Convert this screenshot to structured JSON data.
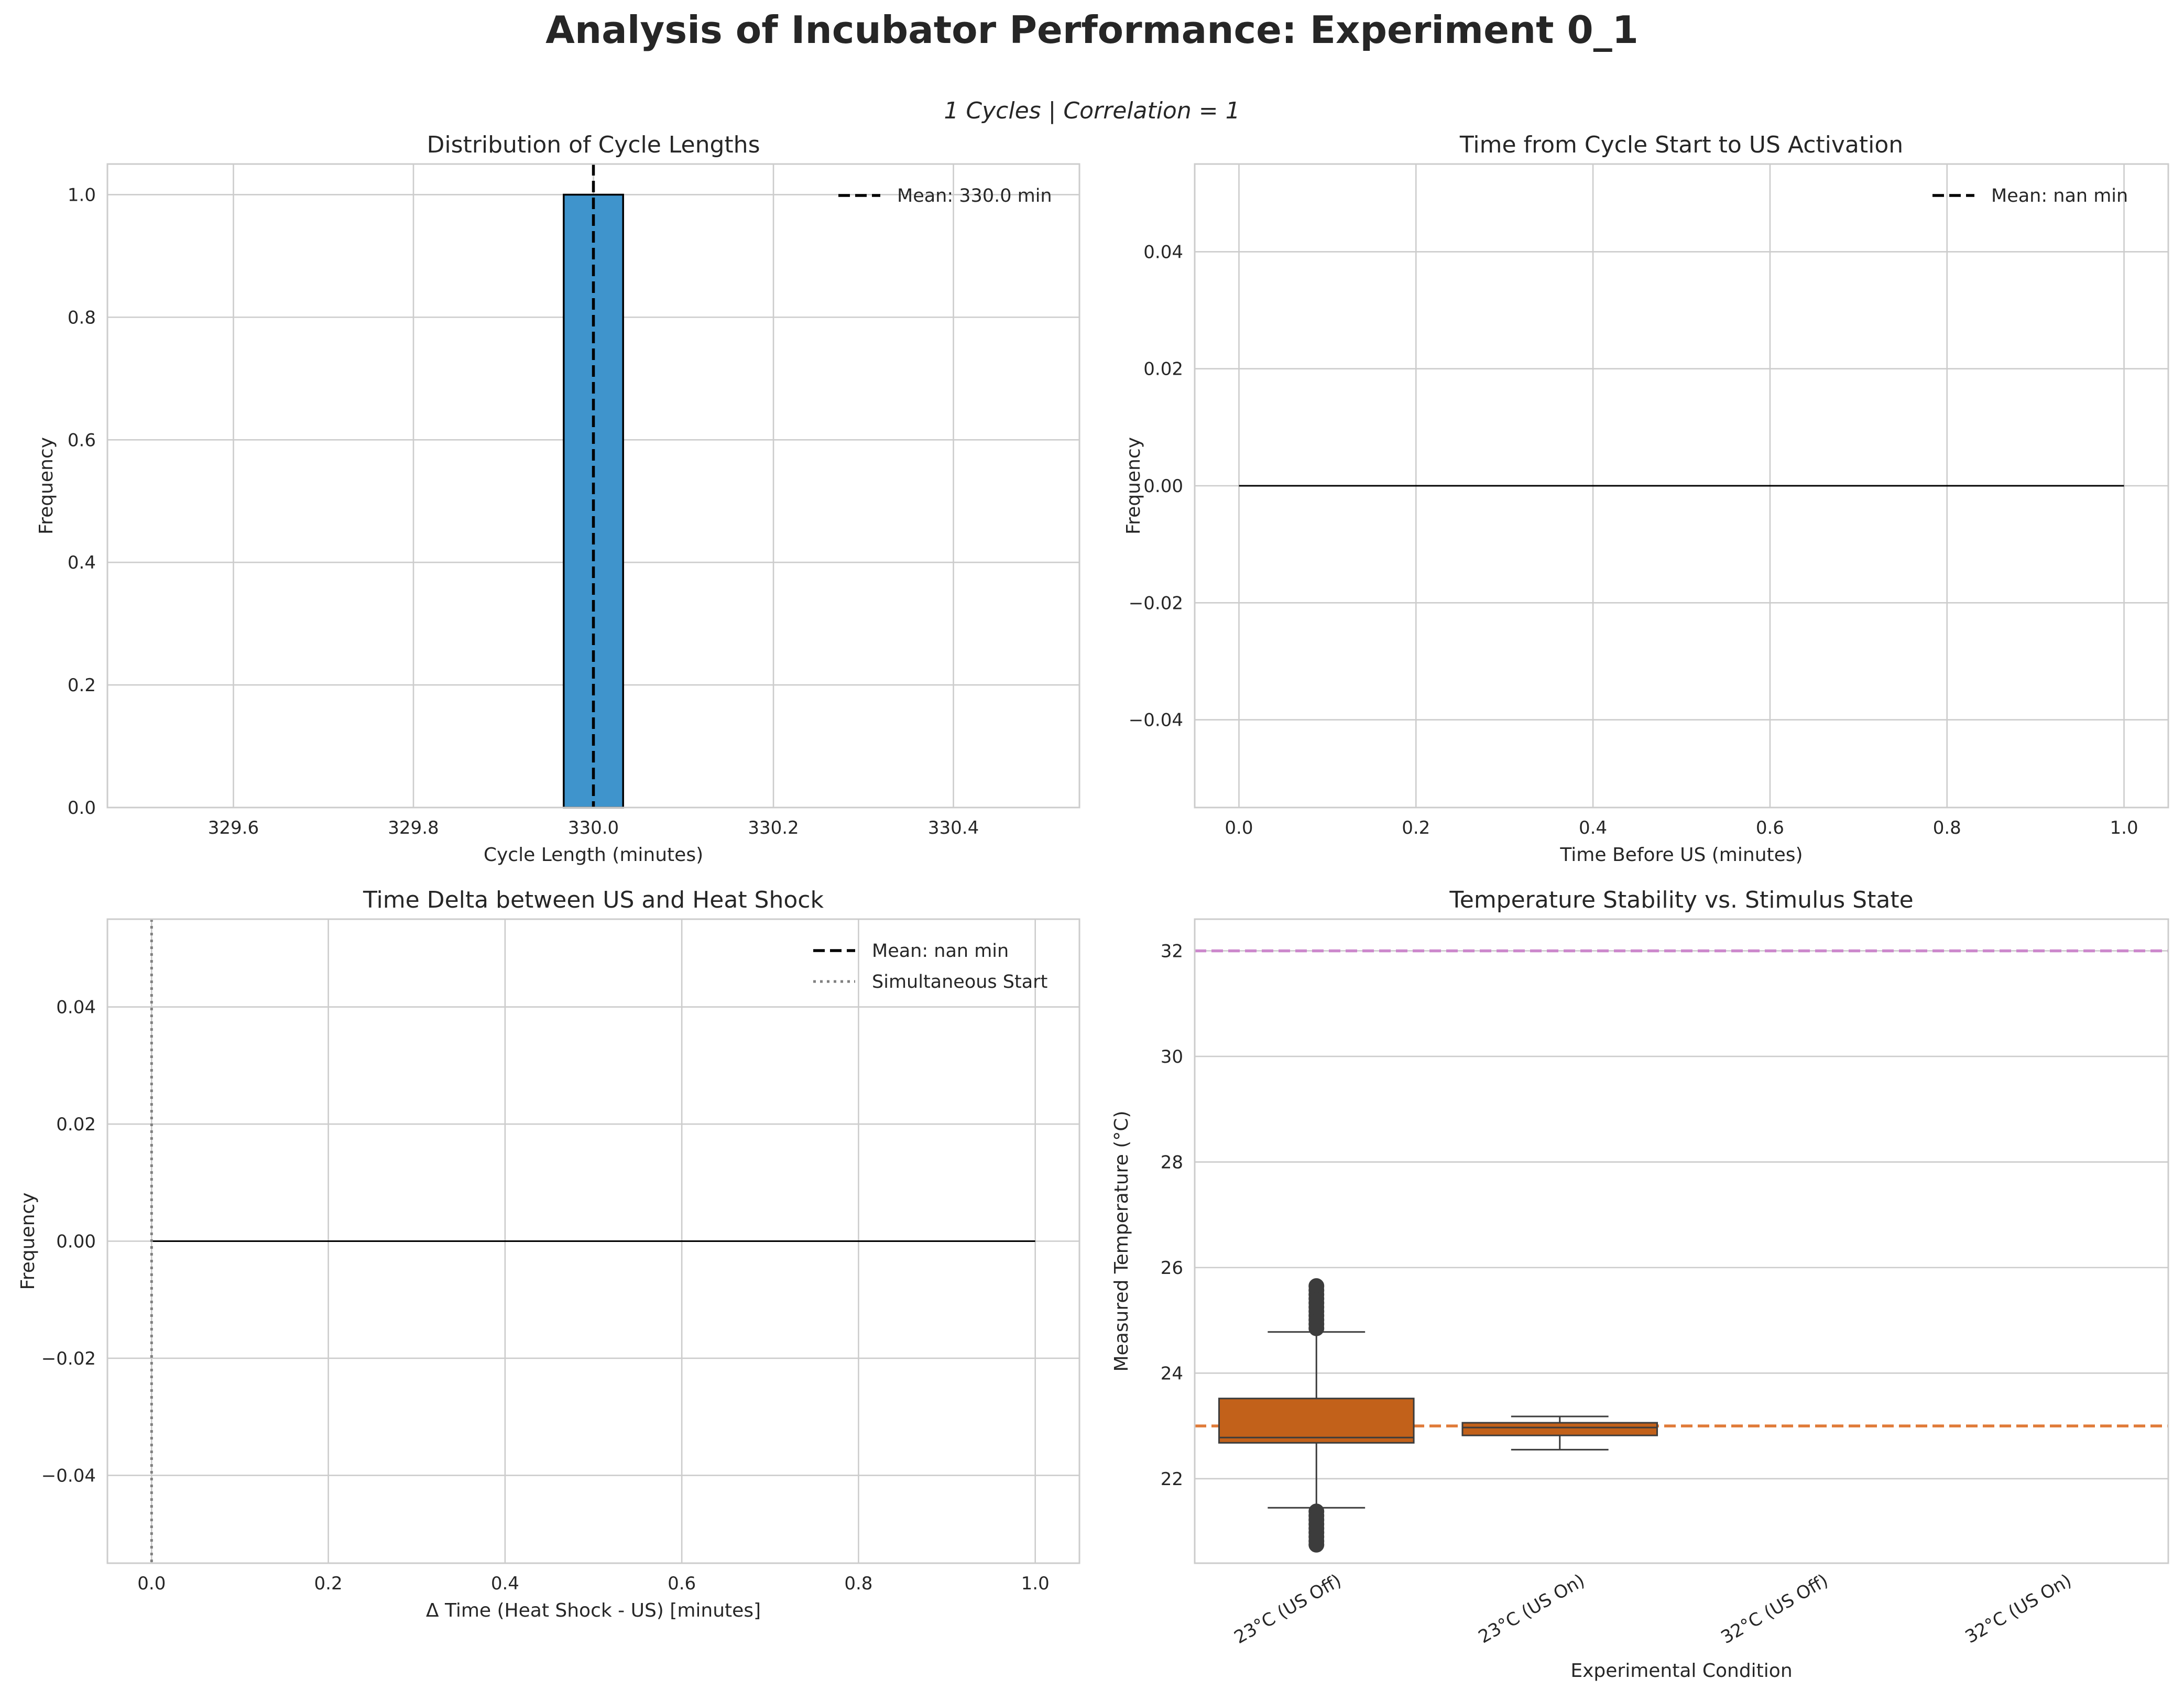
{
  "figure": {
    "title": "Analysis of Incubator Performance: Experiment 0_1",
    "subtitle": "1 Cycles | Correlation = 1"
  },
  "colors": {
    "grid": "#cccccc",
    "spine": "#cccccc",
    "text": "#262626",
    "bar": "#3f94cc",
    "mean_line": "#000000",
    "simultaneous_line": "#808080",
    "box_fill": "#c2611a",
    "box_edge": "#3c3c3c",
    "ref_line_23": "#e07b39",
    "ref_line_32": "#cc88cc"
  },
  "chart_data": [
    {
      "type": "bar",
      "title": "Distribution of Cycle Lengths",
      "xlabel": "Cycle Length (minutes)",
      "ylabel": "Frequency",
      "xlim": [
        329.46,
        330.54
      ],
      "ylim": [
        0,
        1.05
      ],
      "xticks": [
        "329.6",
        "329.8",
        "330.0",
        "330.2",
        "330.4"
      ],
      "yticks": [
        "0.0",
        "0.2",
        "0.4",
        "0.6",
        "0.8",
        "1.0"
      ],
      "bars": [
        {
          "x0": 329.967,
          "x1": 330.033,
          "value": 1
        }
      ],
      "mean_line": {
        "x": 330.0,
        "label": "Mean: 330.0 min"
      },
      "legend": "upper right",
      "grid": true
    },
    {
      "type": "bar",
      "title": "Time from Cycle Start to US Activation",
      "xlabel": "Time Before US (minutes)",
      "ylabel": "Frequency",
      "xlim": [
        -0.05,
        1.05
      ],
      "ylim": [
        -0.055,
        0.055
      ],
      "xticks": [
        "0.0",
        "0.2",
        "0.4",
        "0.6",
        "0.8",
        "1.0"
      ],
      "yticks": [
        "−0.04",
        "−0.02",
        "0.00",
        "0.02",
        "0.04"
      ],
      "baseline": {
        "x": [
          0,
          1
        ],
        "y": 0
      },
      "mean_line": {
        "label": "Mean: nan min"
      },
      "legend": "upper right",
      "grid": true
    },
    {
      "type": "bar",
      "title": "Time Delta between US and Heat Shock",
      "xlabel": "Δ Time (Heat Shock - US) [minutes]",
      "ylabel": "Frequency",
      "xlim": [
        -0.05,
        1.05
      ],
      "ylim": [
        -0.055,
        0.055
      ],
      "xticks": [
        "0.0",
        "0.2",
        "0.4",
        "0.6",
        "0.8",
        "1.0"
      ],
      "yticks": [
        "−0.04",
        "−0.02",
        "0.00",
        "0.02",
        "0.04"
      ],
      "baseline": {
        "x": [
          0,
          1
        ],
        "y": 0
      },
      "mean_line": {
        "label": "Mean: nan min"
      },
      "simultaneous_line": {
        "x": 0,
        "label": "Simultaneous Start"
      },
      "legend": "upper right",
      "grid": true
    },
    {
      "type": "box",
      "title": "Temperature Stability vs. Stimulus State",
      "xlabel": "Experimental Condition",
      "ylabel": "Measured Temperature (°C)",
      "ylim": [
        20.4,
        32.6
      ],
      "yticks": [
        "22",
        "24",
        "26",
        "28",
        "30",
        "32"
      ],
      "categories": [
        "23°C (US Off)",
        "23°C (US On)",
        "32°C (US Off)",
        "32°C (US On)"
      ],
      "boxes": [
        {
          "category": "23°C (US Off)",
          "whisker_low": 21.45,
          "q1": 22.68,
          "median": 22.78,
          "q3": 23.52,
          "whisker_high": 24.78,
          "outliers_low": [
            20.75,
            20.82,
            20.9,
            20.98,
            21.06,
            21.14,
            21.22,
            21.3,
            21.38
          ],
          "outliers_high": [
            24.85,
            24.93,
            25.01,
            25.09,
            25.17,
            25.25,
            25.33,
            25.41,
            25.49,
            25.57,
            25.65
          ]
        },
        {
          "category": "23°C (US On)",
          "whisker_low": 22.55,
          "q1": 22.82,
          "median": 22.97,
          "q3": 23.06,
          "whisker_high": 23.18
        }
      ],
      "reference_lines": [
        {
          "y": 23,
          "color": "#e07b39"
        },
        {
          "y": 32,
          "color": "#cc88cc"
        }
      ],
      "grid": true
    }
  ]
}
